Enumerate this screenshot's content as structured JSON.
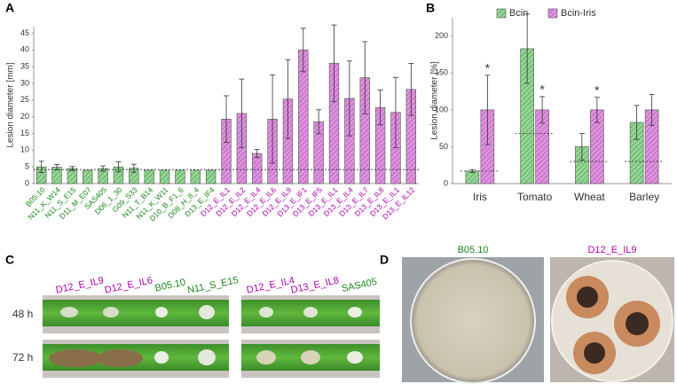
{
  "panel_labels": [
    "A",
    "B",
    "C",
    "D"
  ],
  "chart_data": [
    {
      "type": "bar",
      "y_label": "Lesion diameter [mm]",
      "categories": [
        "B05.10",
        "N11_K_W14",
        "N11_S_E15",
        "D11_M_E07",
        "SAS405",
        "D06_1_30",
        "G09_S33",
        "N11_T_B14",
        "N11_K_W11",
        "D10_B_F1_6",
        "D08_H_8_4",
        "D13_E_IF4",
        "D12_E_IL1",
        "D12_E_IL2",
        "D12_E_IL4",
        "D12_E_IL6",
        "D12_E_IL9",
        "D13_E_IF1",
        "D13_E_IF5",
        "D13_E_IL1",
        "D13_E_IL4",
        "D13_E_IL7",
        "D13_E_IL8",
        "D13_E_IL1",
        "D13_E_IL12"
      ],
      "values": [
        5.0,
        4.9,
        4.5,
        4.0,
        4.5,
        5.0,
        4.6,
        4.0,
        4.0,
        4.0,
        4.0,
        4.0,
        19.3,
        21.0,
        9.0,
        19.3,
        25.3,
        40.0,
        18.5,
        36.0,
        25.5,
        31.7,
        22.8,
        21.3,
        28.2
      ],
      "error": [
        1.7,
        0.8,
        0.6,
        0,
        0.8,
        1.5,
        1.2,
        0,
        0,
        0,
        0,
        0,
        7.0,
        10.3,
        1.2,
        13.2,
        11.8,
        6.5,
        3.6,
        11.5,
        11.2,
        10.8,
        5.2,
        10.5,
        7.8
      ],
      "bar_colors": [
        "#8fd98f",
        "#8fd98f",
        "#8fd98f",
        "#8fd98f",
        "#8fd98f",
        "#8fd98f",
        "#8fd98f",
        "#8fd98f",
        "#8fd98f",
        "#8fd98f",
        "#8fd98f",
        "#8fd98f",
        "#e48ee4",
        "#e48ee4",
        "#e48ee4",
        "#e48ee4",
        "#e48ee4",
        "#e48ee4",
        "#e48ee4",
        "#e48ee4",
        "#e48ee4",
        "#e48ee4",
        "#e48ee4",
        "#e48ee4",
        "#e48ee4"
      ],
      "label_colors": [
        "#1a8a1a",
        "#1a8a1a",
        "#1a8a1a",
        "#1a8a1a",
        "#1a8a1a",
        "#1a8a1a",
        "#1a8a1a",
        "#1a8a1a",
        "#1a8a1a",
        "#1a8a1a",
        "#1a8a1a",
        "#1a8a1a",
        "#b300b3",
        "#b300b3",
        "#b300b3",
        "#b300b3",
        "#b300b3",
        "#b300b3",
        "#b300b3",
        "#b300b3",
        "#b300b3",
        "#b300b3",
        "#b300b3",
        "#b300b3",
        "#b300b3"
      ],
      "reference_line": 4.2,
      "ylim": [
        0,
        47
      ],
      "yticks": [
        0,
        5,
        10,
        15,
        20,
        25,
        30,
        35,
        40,
        45
      ]
    },
    {
      "type": "grouped_bar",
      "y_label": "Lesion diameter [%]",
      "categories": [
        "Iris",
        "Tomato",
        "Wheat",
        "Barley"
      ],
      "series": [
        {
          "name": "Bcin",
          "color": "#8fd98f",
          "values": [
            17,
            183,
            50,
            83
          ],
          "error": [
            2,
            47,
            18,
            23
          ]
        },
        {
          "name": "Bcin-Iris",
          "color": "#e48ee4",
          "values": [
            100,
            100,
            100,
            100
          ],
          "error": [
            47,
            18,
            17,
            21
          ]
        }
      ],
      "annotations": [
        "*",
        "*",
        "*",
        null
      ],
      "reference_lines": [
        17,
        68,
        30,
        30
      ],
      "ylim": [
        0,
        225
      ],
      "yticks": [
        0,
        50,
        100,
        150,
        200
      ]
    }
  ],
  "photos": {
    "rows": [
      "48 h",
      "72 h"
    ],
    "left_labels": [
      {
        "text": "D12_E_IL9",
        "color": "#b300b3"
      },
      {
        "text": "D12_E_IL6",
        "color": "#b300b3"
      },
      {
        "text": "B05.10",
        "color": "#1a8a1a"
      },
      {
        "text": "N11_S_E15",
        "color": "#1a8a1a"
      }
    ],
    "right_labels": [
      {
        "text": "D12_E_IL4",
        "color": "#b300b3"
      },
      {
        "text": "D13_E_IL8",
        "color": "#b300b3"
      },
      {
        "text": "SAS405",
        "color": "#1a8a1a"
      }
    ],
    "plates": [
      {
        "text": "B05.10",
        "color": "#1a8a1a"
      },
      {
        "text": "D12_E_IL9",
        "color": "#b300b3"
      }
    ]
  }
}
